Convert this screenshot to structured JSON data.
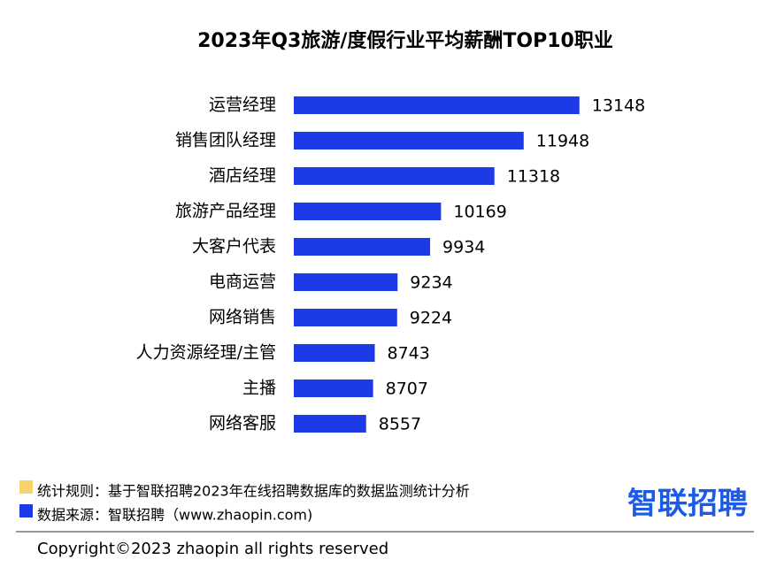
{
  "chart_data": {
    "type": "hbar",
    "title": "2023年Q3旅游/度假行业平均薪酬TOP10职业",
    "categories": [
      "运营经理",
      "销售团队经理",
      "酒店经理",
      "旅游产品经理",
      "大客户代表",
      "电商运营",
      "网络销售",
      "人力资源经理/主管",
      "主播",
      "网络客服"
    ],
    "values": [
      13148,
      11948,
      11318,
      10169,
      9934,
      9234,
      9224,
      8743,
      8707,
      8557
    ],
    "color": "#1c3ae6",
    "xlim": [
      7000,
      14000
    ]
  },
  "footer": {
    "rule": {
      "text": "统计规则：基于智联招聘2023年在线招聘数据库的数据监测统计分析",
      "color": "#f7d36e"
    },
    "source": {
      "text": "数据来源：智联招聘（www.zhaopin.com)",
      "color": "#1c3ae6"
    },
    "logo": "智联招聘",
    "copyright": "Copyright©2023 zhaopin all rights reserved"
  }
}
